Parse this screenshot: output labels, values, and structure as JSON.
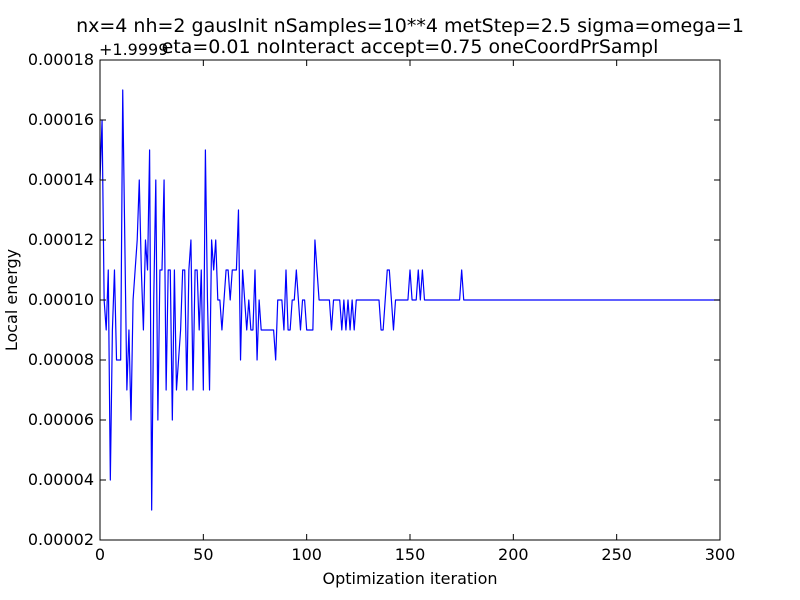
{
  "chart_data": {
    "type": "line",
    "title": "nx=4 nh=2 gausInit nSamples=10**4 metStep=2.5 sigma=omega=1",
    "subtitle": "eta=0.01 noInteract accept=0.75 oneCoordPrSampl",
    "xlabel": "Optimization iteration",
    "ylabel": "Local energy",
    "y_offset_label": "+1.9999",
    "xlim": [
      0,
      300
    ],
    "ylim": [
      2e-05,
      0.00018
    ],
    "grid": false,
    "x_ticks": [
      0,
      50,
      100,
      150,
      200,
      250,
      300
    ],
    "y_ticks": [
      2e-05,
      4e-05,
      6e-05,
      8e-05,
      0.0001,
      0.00012,
      0.00014,
      0.00016,
      0.00018
    ],
    "x_tick_labels": [
      "0",
      "50",
      "100",
      "150",
      "200",
      "250",
      "300"
    ],
    "y_tick_labels": [
      "0.00002",
      "0.00004",
      "0.00006",
      "0.00008",
      "0.00010",
      "0.00012",
      "0.00014",
      "0.00016",
      "0.00018"
    ],
    "line_color": "#0000ff",
    "series": [
      {
        "x": [
          0,
          1,
          2,
          3,
          4,
          5,
          6,
          7,
          8,
          9,
          10,
          11,
          12,
          13,
          14,
          15,
          16,
          17,
          18,
          19,
          20,
          21,
          22,
          23,
          24,
          25,
          26,
          27,
          28,
          29,
          30,
          31,
          32,
          33,
          34,
          35,
          36,
          37,
          38,
          39,
          40,
          41,
          42,
          43,
          44,
          45,
          46,
          47,
          48,
          49,
          50,
          51,
          52,
          53,
          54,
          55,
          56,
          57,
          58,
          59,
          60,
          61,
          62,
          63,
          64,
          65,
          66,
          67,
          68,
          69,
          70,
          71,
          72,
          73,
          74,
          75,
          76,
          77,
          78,
          79,
          80,
          81,
          82,
          83,
          84,
          85,
          86,
          87,
          88,
          89,
          90,
          91,
          92,
          93,
          94,
          95,
          96,
          97,
          98,
          99,
          100,
          101,
          102,
          103,
          104,
          105,
          106,
          107,
          108,
          109,
          110,
          111,
          112,
          113,
          114,
          115,
          116,
          117,
          118,
          119,
          120,
          121,
          122,
          123,
          124,
          125,
          126,
          127,
          128,
          129,
          130,
          131,
          132,
          133,
          134,
          135,
          136,
          137,
          138,
          139,
          140,
          141,
          142,
          143,
          144,
          145,
          146,
          147,
          148,
          149,
          150,
          151,
          152,
          153,
          154,
          155,
          156,
          157,
          158,
          159,
          160,
          170,
          171,
          172,
          173,
          174,
          175,
          176,
          177,
          178,
          300
        ],
        "y": [
          0.00014,
          0.00016,
          0.0001,
          9e-05,
          0.00011,
          4e-05,
          9e-05,
          0.00011,
          8e-05,
          8e-05,
          8e-05,
          0.00017,
          0.00012,
          7e-05,
          9e-05,
          6e-05,
          0.0001,
          0.00011,
          0.00012,
          0.00014,
          0.00011,
          9e-05,
          0.00012,
          0.00011,
          0.00015,
          3e-05,
          0.0001,
          0.00014,
          6e-05,
          0.00011,
          0.00011,
          0.00014,
          7e-05,
          0.00011,
          0.00011,
          6e-05,
          0.00011,
          7e-05,
          8e-05,
          9e-05,
          0.00011,
          0.00011,
          7e-05,
          0.00011,
          0.00012,
          7e-05,
          0.00011,
          0.00011,
          9e-05,
          0.00011,
          7e-05,
          0.00015,
          0.0001,
          7e-05,
          0.00012,
          0.00011,
          0.00012,
          0.0001,
          0.0001,
          9e-05,
          0.0001,
          0.00011,
          0.00011,
          0.0001,
          0.00011,
          0.00011,
          0.00011,
          0.00013,
          8e-05,
          0.00011,
          0.0001,
          9e-05,
          0.0001,
          9e-05,
          9e-05,
          0.00011,
          8e-05,
          0.0001,
          9e-05,
          9e-05,
          9e-05,
          9e-05,
          9e-05,
          9e-05,
          9e-05,
          8e-05,
          0.0001,
          0.0001,
          0.0001,
          9e-05,
          0.00011,
          9e-05,
          9e-05,
          0.0001,
          0.0001,
          0.00011,
          0.0001,
          9e-05,
          0.0001,
          0.0001,
          9e-05,
          9e-05,
          9e-05,
          9e-05,
          0.00012,
          0.00011,
          0.0001,
          0.0001,
          0.0001,
          0.0001,
          0.0001,
          0.0001,
          9e-05,
          0.0001,
          0.0001,
          0.0001,
          0.0001,
          9e-05,
          0.0001,
          9e-05,
          0.0001,
          9e-05,
          0.0001,
          9e-05,
          0.0001,
          0.0001,
          0.0001,
          0.0001,
          0.0001,
          0.0001,
          0.0001,
          0.0001,
          0.0001,
          0.0001,
          0.0001,
          0.0001,
          9e-05,
          9e-05,
          0.0001,
          0.00011,
          0.00011,
          0.0001,
          9e-05,
          0.0001,
          0.0001,
          0.0001,
          0.0001,
          0.0001,
          0.0001,
          0.0001,
          0.00011,
          0.0001,
          0.0001,
          0.0001,
          0.00011,
          0.0001,
          0.00011,
          0.0001,
          0.0001,
          0.0001,
          0.0001,
          0.0001,
          0.0001,
          0.0001,
          0.0001,
          0.0001,
          0.00011,
          0.0001,
          0.0001,
          0.0001,
          0.0001
        ]
      }
    ]
  }
}
